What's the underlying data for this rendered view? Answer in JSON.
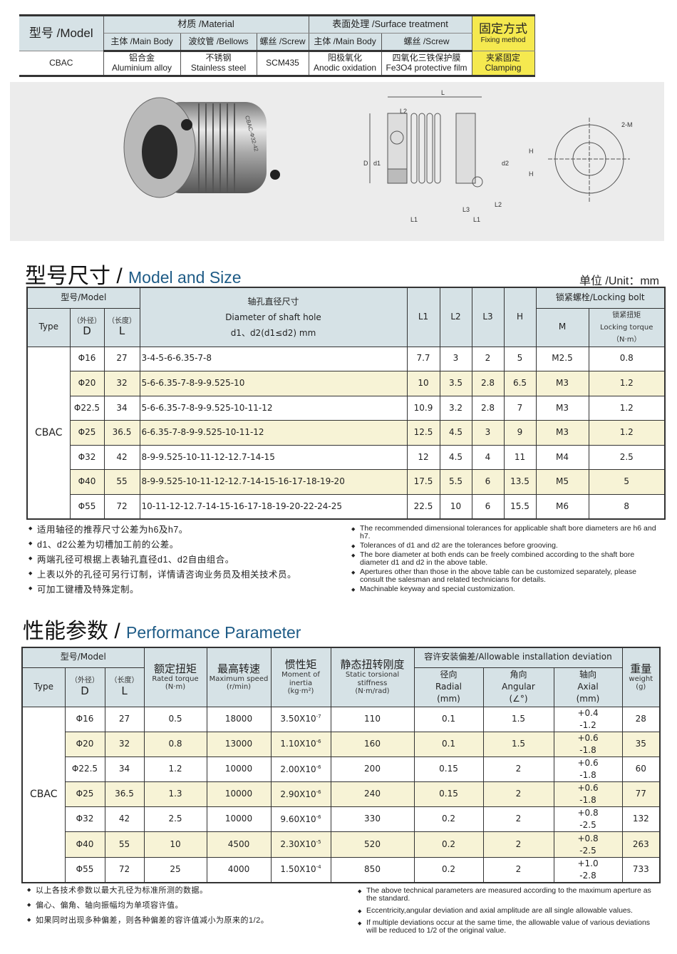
{
  "materials_table": {
    "model_label": "型号 /Model",
    "material_label": "材质 /Material",
    "surface_label": "表面处理 /Surface treatment",
    "fixing_label": "固定方式",
    "fixing_label_en": "Fixing method",
    "sub_main_body": "主体 /Main Body",
    "sub_bellows": "波纹管 /Bellows",
    "sub_screw": "螺丝 /Screw",
    "sub_surface_main": "主体 /Main Body",
    "sub_surface_screw": "螺丝 /Screw",
    "model": "CBAC",
    "main_body_zh": "铝合金",
    "main_body_en": "Aluminium alloy",
    "bellows_zh": "不锈钢",
    "bellows_en": "Stainless steel",
    "screw": "SCM435",
    "surface_main_zh": "阳极氧化",
    "surface_main_en": "Anodic oxidation",
    "surface_screw_zh": "四氧化三铁保护膜",
    "surface_screw_en": "Fe3O4 protective film",
    "fixing_zh": "夹紧固定",
    "fixing_en": "Clamping",
    "highlight_color": "#f5e94f"
  },
  "drawing": {
    "labels": {
      "L": "L",
      "L1": "L1",
      "L2": "L2",
      "L3": "L3",
      "D": "D",
      "d1": "d1",
      "d2": "d2",
      "H": "H",
      "M": "2-M"
    },
    "product_text": "CBAC-Φ32-42"
  },
  "size_section": {
    "title_zh": "型号尺寸 /",
    "title_en": "Model and Size",
    "unit": "单位 /Unit：mm",
    "headers": {
      "model": "型号/Model",
      "type": "Type",
      "d_zh": "（外径）",
      "d": "D",
      "l_zh": "（长度）",
      "l": "L",
      "diam_zh": "轴孔直径尺寸",
      "diam_en": "Diameter of shaft hole",
      "diam_unit": "d1、d2(d1≤d2) mm",
      "L1": "L1",
      "L2": "L2",
      "L3": "L3",
      "H": "H",
      "bolt": "锁紧螺栓/Locking bolt",
      "M": "M",
      "torque_zh": "锁紧扭矩",
      "torque_en": "Locking torque",
      "torque_unit": "（N·m）"
    },
    "type": "CBAC",
    "rows": [
      {
        "D": "Φ16",
        "L": "27",
        "d": "3-4-5-6-6.35-7-8",
        "L1": "7.7",
        "L2": "3",
        "L3": "2",
        "H": "5",
        "M": "M2.5",
        "T": "0.8"
      },
      {
        "D": "Φ20",
        "L": "32",
        "d": "5-6-6.35-7-8-9-9.525-10",
        "L1": "10",
        "L2": "3.5",
        "L3": "2.8",
        "H": "6.5",
        "M": "M3",
        "T": "1.2"
      },
      {
        "D": "Φ22.5",
        "L": "34",
        "d": "5-6-6.35-7-8-9-9.525-10-11-12",
        "L1": "10.9",
        "L2": "3.2",
        "L3": "2.8",
        "H": "7",
        "M": "M3",
        "T": "1.2"
      },
      {
        "D": "Φ25",
        "L": "36.5",
        "d": "6-6.35-7-8-9-9.525-10-11-12",
        "L1": "12.5",
        "L2": "4.5",
        "L3": "3",
        "H": "9",
        "M": "M3",
        "T": "1.2"
      },
      {
        "D": "Φ32",
        "L": "42",
        "d": "8-9-9.525-10-11-12-12.7-14-15",
        "L1": "12",
        "L2": "4.5",
        "L3": "4",
        "H": "11",
        "M": "M4",
        "T": "2.5"
      },
      {
        "D": "Φ40",
        "L": "55",
        "d": "8-9-9.525-10-11-12-12.7-14-15-16-17-18-19-20",
        "L1": "17.5",
        "L2": "5.5",
        "L3": "6",
        "H": "13.5",
        "M": "M5",
        "T": "5"
      },
      {
        "D": "Φ55",
        "L": "72",
        "d": "10-11-12-12.7-14-15-16-17-18-19-20-22-24-25",
        "L1": "22.5",
        "L2": "10",
        "L3": "6",
        "H": "15.5",
        "M": "M6",
        "T": "8"
      }
    ],
    "notes_zh": [
      "适用轴径的推荐尺寸公差为h6及h7。",
      "d1、d2公差为切槽加工前的公差。",
      "两端孔径可根据上表轴孔直径d1、d2自由组合。",
      "上表以外的孔径可另行订制，详情请咨询业务员及相关技术员。",
      "可加工键槽及特殊定制。"
    ],
    "notes_en": [
      "The recommended dimensional tolerances for applicable shaft bore diameters are h6 and h7.",
      "Tolerances of d1 and d2 are the tolerances before grooving.",
      "The bore diameter at both ends can be freely combined according to the shaft bore diameter d1 and d2 in the above table.",
      "Apertures other than those in the above table can be customized separately, please consult the salesman and related technicians for details.",
      "Machinable keyway and special customization."
    ]
  },
  "perf_section": {
    "title_zh": "性能参数 /",
    "title_en": "Performance Parameter",
    "headers": {
      "model": "型号/Model",
      "type": "Type",
      "d_zh": "（外径）",
      "d": "D",
      "l_zh": "（长度）",
      "l": "L",
      "torque_zh": "额定扭矩",
      "torque_en": "Rated torque",
      "torque_unit": "(N·m)",
      "speed_zh": "最高转速",
      "speed_en": "Maximum speed",
      "speed_unit": "(r/min)",
      "inertia_zh": "惯性矩",
      "inertia_en": "Moment of inertia",
      "inertia_unit": "(kg·m²)",
      "stiff_zh": "静态扭转刚度",
      "stiff_en": "Static torsional stiffness",
      "stiff_unit": "(N·m/rad)",
      "dev": "容许安装偏差/Allowable installation deviation",
      "radial_zh": "径向",
      "radial_en": "Radial",
      "radial_unit": "(mm)",
      "angular_zh": "角向",
      "angular_en": "Angular",
      "angular_unit": "(∠°)",
      "axial_zh": "轴向",
      "axial_en": "Axial",
      "axial_unit": "(mm)",
      "weight_zh": "重量",
      "weight_en": "weight",
      "weight_unit": "(g)"
    },
    "type": "CBAC",
    "rows": [
      {
        "D": "Φ16",
        "L": "27",
        "torque": "0.5",
        "speed": "18000",
        "inertia": "3.50X10",
        "exp": "-7",
        "stiff": "110",
        "radial": "0.1",
        "angular": "1.5",
        "ax_p": "+0.4",
        "ax_m": "-1.2",
        "weight": "28"
      },
      {
        "D": "Φ20",
        "L": "32",
        "torque": "0.8",
        "speed": "13000",
        "inertia": "1.10X10",
        "exp": "-6",
        "stiff": "160",
        "radial": "0.1",
        "angular": "1.5",
        "ax_p": "+0.6",
        "ax_m": "-1.8",
        "weight": "35"
      },
      {
        "D": "Φ22.5",
        "L": "34",
        "torque": "1.2",
        "speed": "10000",
        "inertia": "2.00X10",
        "exp": "-6",
        "stiff": "200",
        "radial": "0.15",
        "angular": "2",
        "ax_p": "+0.6",
        "ax_m": "-1.8",
        "weight": "60"
      },
      {
        "D": "Φ25",
        "L": "36.5",
        "torque": "1.3",
        "speed": "10000",
        "inertia": "2.90X10",
        "exp": "-6",
        "stiff": "240",
        "radial": "0.15",
        "angular": "2",
        "ax_p": "+0.6",
        "ax_m": "-1.8",
        "weight": "77"
      },
      {
        "D": "Φ32",
        "L": "42",
        "torque": "2.5",
        "speed": "10000",
        "inertia": "9.60X10",
        "exp": "-6",
        "stiff": "330",
        "radial": "0.2",
        "angular": "2",
        "ax_p": "+0.8",
        "ax_m": "-2.5",
        "weight": "132"
      },
      {
        "D": "Φ40",
        "L": "55",
        "torque": "10",
        "speed": "4500",
        "inertia": "2.30X10",
        "exp": "-5",
        "stiff": "520",
        "radial": "0.2",
        "angular": "2",
        "ax_p": "+0.8",
        "ax_m": "-2.5",
        "weight": "263"
      },
      {
        "D": "Φ55",
        "L": "72",
        "torque": "25",
        "speed": "4000",
        "inertia": "1.50X10",
        "exp": "-4",
        "stiff": "850",
        "radial": "0.2",
        "angular": "2",
        "ax_p": "+1.0",
        "ax_m": "-2.8",
        "weight": "733"
      }
    ],
    "notes_zh": [
      "以上各技术参数以最大孔径为标准所测的数据。",
      "偏心、偏角、轴向振幅均为单项容许值。",
      "如果同时出现多种偏差，则各种偏差的容许值减小为原来的1/2。"
    ],
    "notes_en": [
      "The above technical parameters are measured according to the maximum aperture as the standard.",
      "Eccentricity,angular deviation and axial amplitude are all single allowable values.",
      "If multiple deviations occur at the same time, the allowable value of various deviations will be reduced to 1/2 of the original value."
    ]
  },
  "colors": {
    "header": "#d6e2e6",
    "row_alt": "#f7f3d6",
    "title_en": "#1e5b86"
  }
}
